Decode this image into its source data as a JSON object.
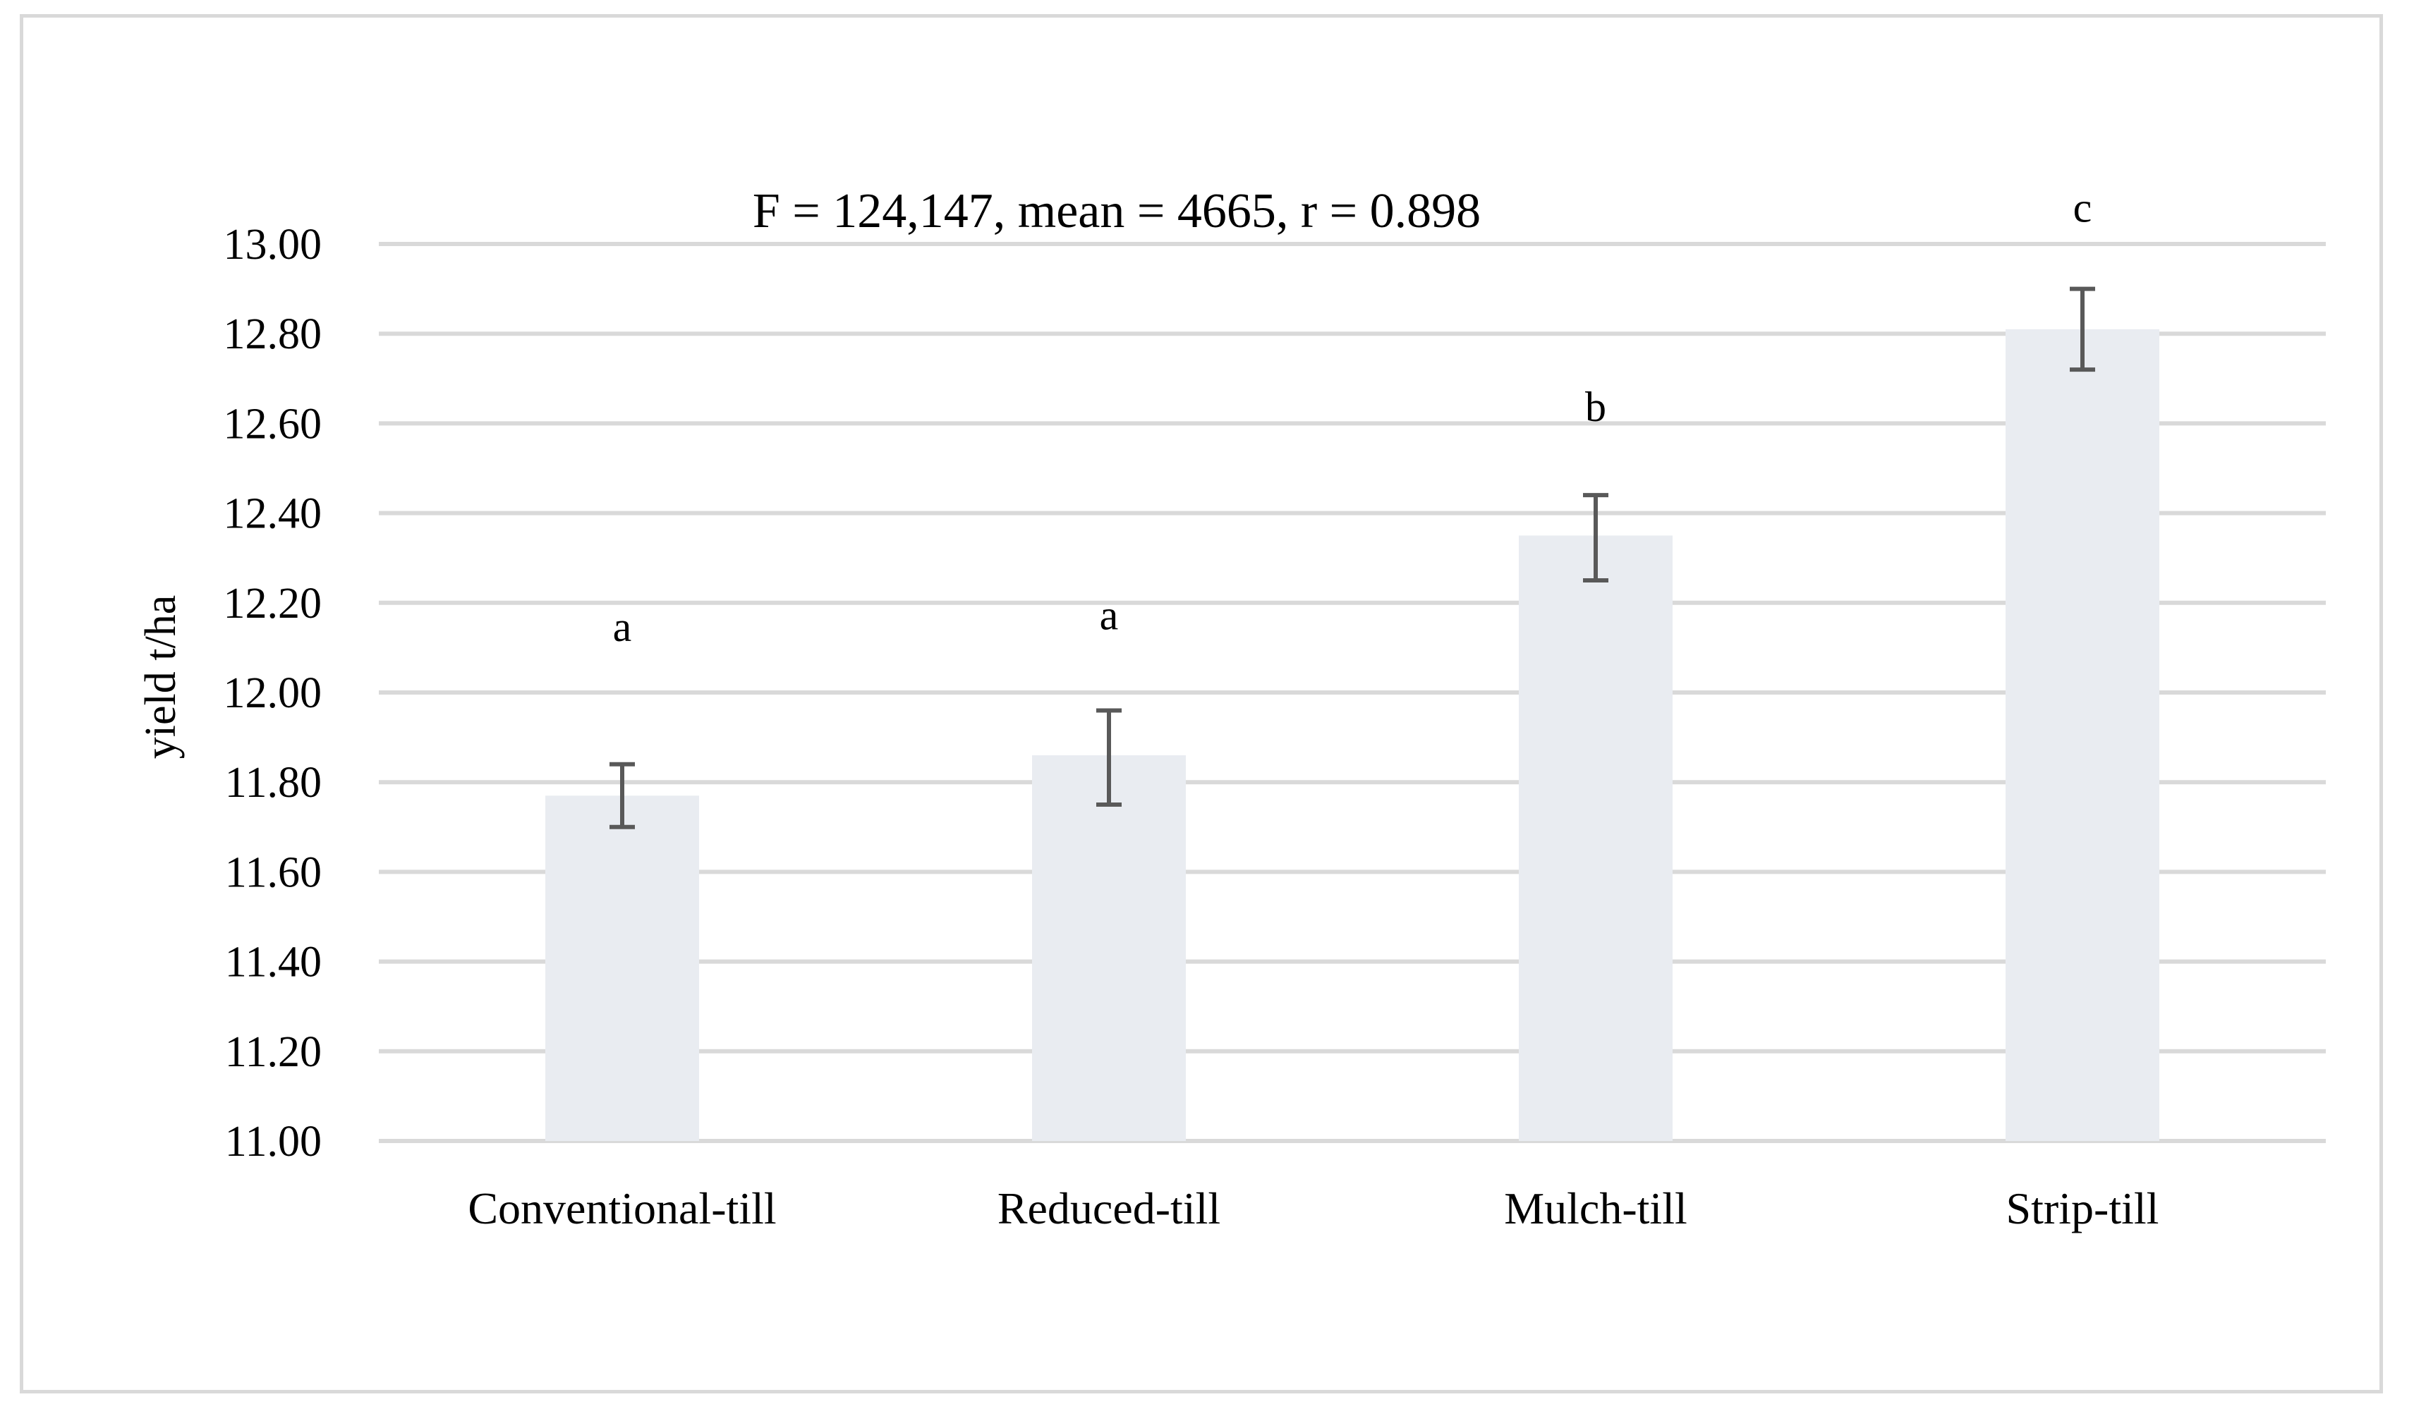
{
  "chart_data": {
    "type": "bar",
    "annotation": "F = 124,147,  mean = 4665, r = 0.898",
    "ylabel": "yield t/ha",
    "xlabel": "",
    "ylim": [
      11.0,
      13.0
    ],
    "yticks": [
      "11.00",
      "11.20",
      "11.40",
      "11.60",
      "11.80",
      "12.00",
      "12.20",
      "12.40",
      "12.60",
      "12.80",
      "13.00"
    ],
    "ytick_values": [
      11.0,
      11.2,
      11.4,
      11.6,
      11.8,
      12.0,
      12.2,
      12.4,
      12.6,
      12.8,
      13.0
    ],
    "categories": [
      "Conventional-till",
      "Reduced-till",
      "Mulch-till",
      "Strip-till"
    ],
    "values": [
      11.77,
      11.86,
      12.35,
      12.81
    ],
    "error_low": [
      11.7,
      11.75,
      12.25,
      12.72
    ],
    "error_high": [
      11.84,
      11.96,
      12.44,
      12.9
    ],
    "significance_letters": [
      "a",
      "a",
      "b",
      "c"
    ],
    "grid": true,
    "legend": "none",
    "colors": {
      "bar": "#e9ecf1",
      "gridline": "#d9d9d9",
      "error_bar": "#595959",
      "frame": "#d9d9d9"
    }
  }
}
